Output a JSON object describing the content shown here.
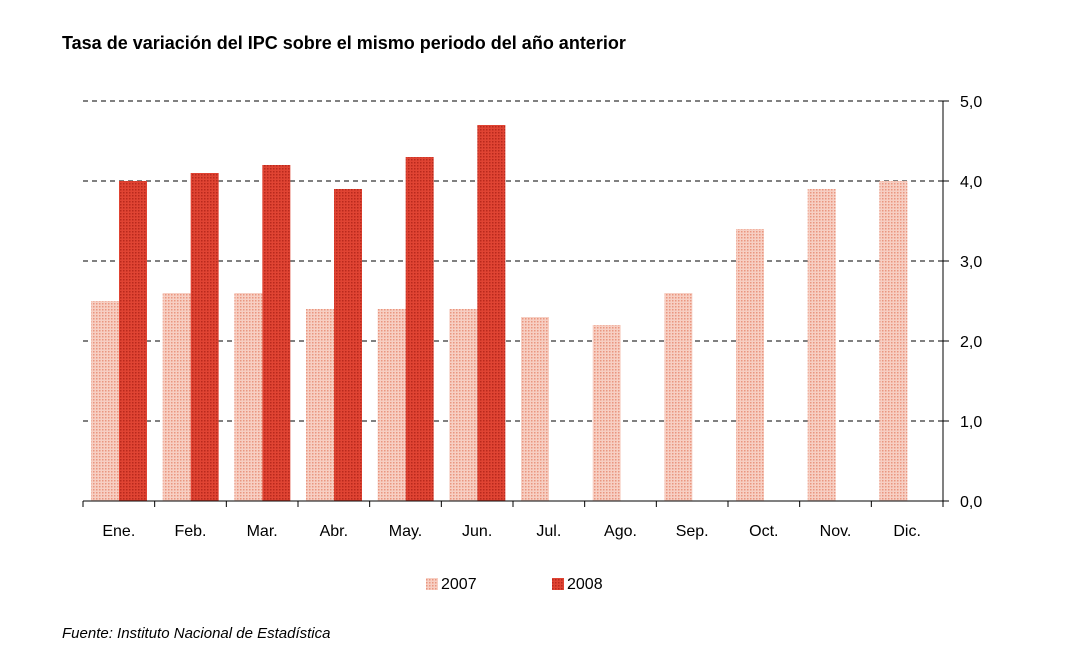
{
  "chart_data": {
    "type": "bar",
    "title": "Tasa de variación del IPC sobre el mismo periodo del año anterior",
    "categories": [
      "Ene.",
      "Feb.",
      "Mar.",
      "Abr.",
      "May.",
      "Jun.",
      "Jul.",
      "Ago.",
      "Sep.",
      "Oct.",
      "Nov.",
      "Dic."
    ],
    "series": [
      {
        "name": "2007",
        "color": "#f2b3a3",
        "values": [
          2.5,
          2.6,
          2.6,
          2.4,
          2.4,
          2.4,
          2.3,
          2.2,
          2.6,
          3.4,
          3.9,
          4.0
        ]
      },
      {
        "name": "2008",
        "color": "#d93a2b",
        "values": [
          4.0,
          4.1,
          4.2,
          3.9,
          4.3,
          4.7,
          null,
          null,
          null,
          null,
          null,
          null
        ]
      }
    ],
    "y_axis": {
      "position": "right",
      "ylim": [
        0,
        5
      ],
      "ticks": [
        "0,0",
        "1,0",
        "2,0",
        "3,0",
        "4,0",
        "5,0"
      ]
    },
    "grid": true,
    "legend_position": "bottom",
    "source": "Fuente: Instituto Nacional de Estadística"
  }
}
